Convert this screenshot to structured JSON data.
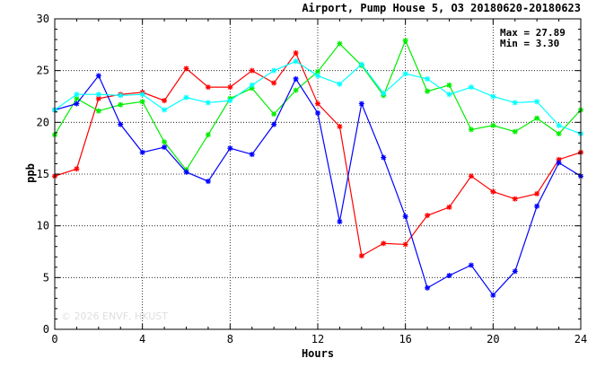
{
  "chart_data": {
    "type": "line",
    "title": "Airport, Pump House 5, O3 20180620-20180623",
    "xlabel": "Hours",
    "ylabel": "ppb",
    "xlim": [
      0,
      24
    ],
    "ylim": [
      0,
      30
    ],
    "xticks": [
      "0",
      "4",
      "8",
      "12",
      "16",
      "20",
      "24"
    ],
    "yticks": [
      "0",
      "5",
      "10",
      "15",
      "20",
      "25",
      "30"
    ],
    "grid": true,
    "stats": {
      "max_label": "Max = 27.89",
      "min_label": "Min =  3.30"
    },
    "watermark": "© 2026 ENVF, HKUST",
    "x": [
      0,
      1,
      2,
      3,
      4,
      5,
      6,
      7,
      8,
      9,
      10,
      11,
      12,
      13,
      14,
      15,
      16,
      17,
      18,
      19,
      20,
      21,
      22,
      23,
      24
    ],
    "series": [
      {
        "color": "#ff0000",
        "values": [
          14.8,
          15.5,
          22.3,
          22.7,
          22.9,
          22.1,
          25.2,
          23.4,
          23.4,
          25.0,
          23.8,
          26.7,
          21.8,
          19.6,
          7.1,
          8.3,
          8.2,
          11.0,
          11.8,
          14.8,
          13.3,
          12.6,
          13.1,
          16.4,
          17.1
        ]
      },
      {
        "color": "#00ee00",
        "values": [
          18.8,
          22.3,
          21.1,
          21.7,
          22.0,
          18.1,
          15.4,
          18.8,
          22.3,
          23.3,
          20.8,
          23.1,
          24.9,
          27.6,
          25.5,
          22.6,
          27.9,
          23.0,
          23.6,
          19.3,
          19.7,
          19.1,
          20.4,
          18.9,
          21.2
        ]
      },
      {
        "color": "#0000ff",
        "values": [
          21.2,
          21.8,
          24.5,
          19.8,
          17.1,
          17.6,
          15.2,
          14.3,
          17.5,
          16.9,
          19.8,
          24.2,
          20.9,
          10.4,
          21.8,
          16.6,
          10.9,
          4.0,
          5.2,
          6.2,
          3.3,
          5.6,
          11.9,
          16.1,
          14.8
        ]
      },
      {
        "color": "#00ffff",
        "values": [
          21.2,
          22.7,
          22.7,
          22.6,
          22.7,
          21.2,
          22.4,
          21.9,
          22.1,
          23.6,
          25.0,
          25.9,
          24.5,
          23.7,
          25.6,
          22.8,
          24.7,
          24.2,
          22.7,
          23.4,
          22.5,
          21.9,
          22.0,
          19.7,
          18.9
        ]
      }
    ]
  }
}
